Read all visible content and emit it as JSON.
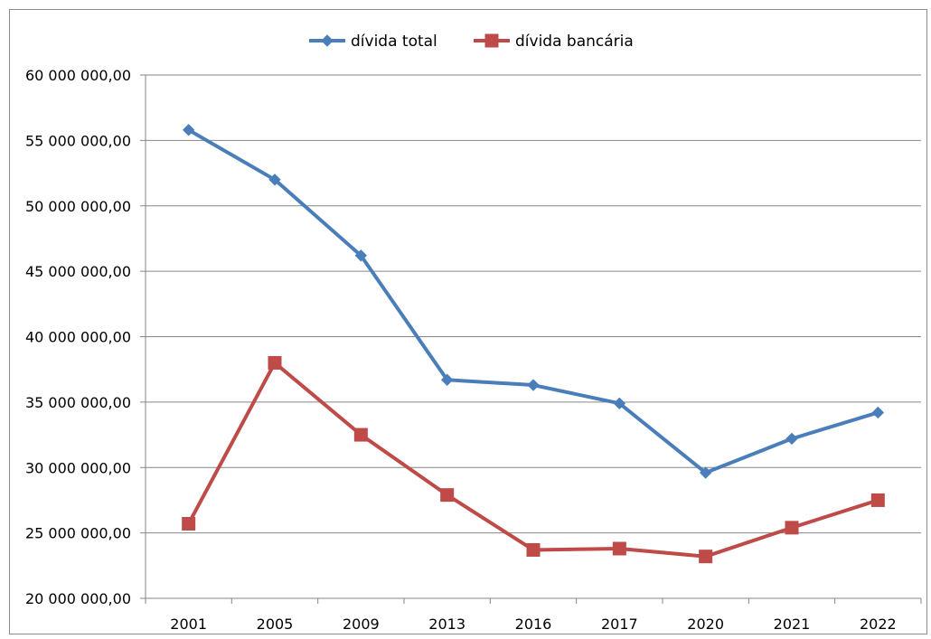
{
  "chart_data": {
    "type": "line",
    "title": "",
    "xlabel": "",
    "ylabel": "",
    "categories": [
      "2001",
      "2005",
      "2009",
      "2013",
      "2016",
      "2017",
      "2020",
      "2021",
      "2022"
    ],
    "ylim": [
      20000000,
      60000000
    ],
    "y_ticks": [
      20000000,
      25000000,
      30000000,
      35000000,
      40000000,
      45000000,
      50000000,
      55000000,
      60000000
    ],
    "y_tick_labels": [
      "20 000 000,00",
      "25 000 000,00",
      "30 000 000,00",
      "35 000 000,00",
      "40 000 000,00",
      "45 000 000,00",
      "50 000 000,00",
      "55 000 000,00",
      "60 000 000,00"
    ],
    "grid": "horizontal",
    "legend_position": "top-center",
    "series": [
      {
        "name": "dívida total",
        "color": "#4a7ebb",
        "marker": "diamond",
        "values": [
          55800000,
          52000000,
          46200000,
          36700000,
          36300000,
          34900000,
          29600000,
          32200000,
          34200000
        ]
      },
      {
        "name": "dívida bancária",
        "color": "#be4b48",
        "marker": "square",
        "values": [
          25700000,
          38000000,
          32500000,
          27900000,
          23700000,
          23800000,
          23200000,
          25400000,
          27500000
        ]
      }
    ]
  }
}
